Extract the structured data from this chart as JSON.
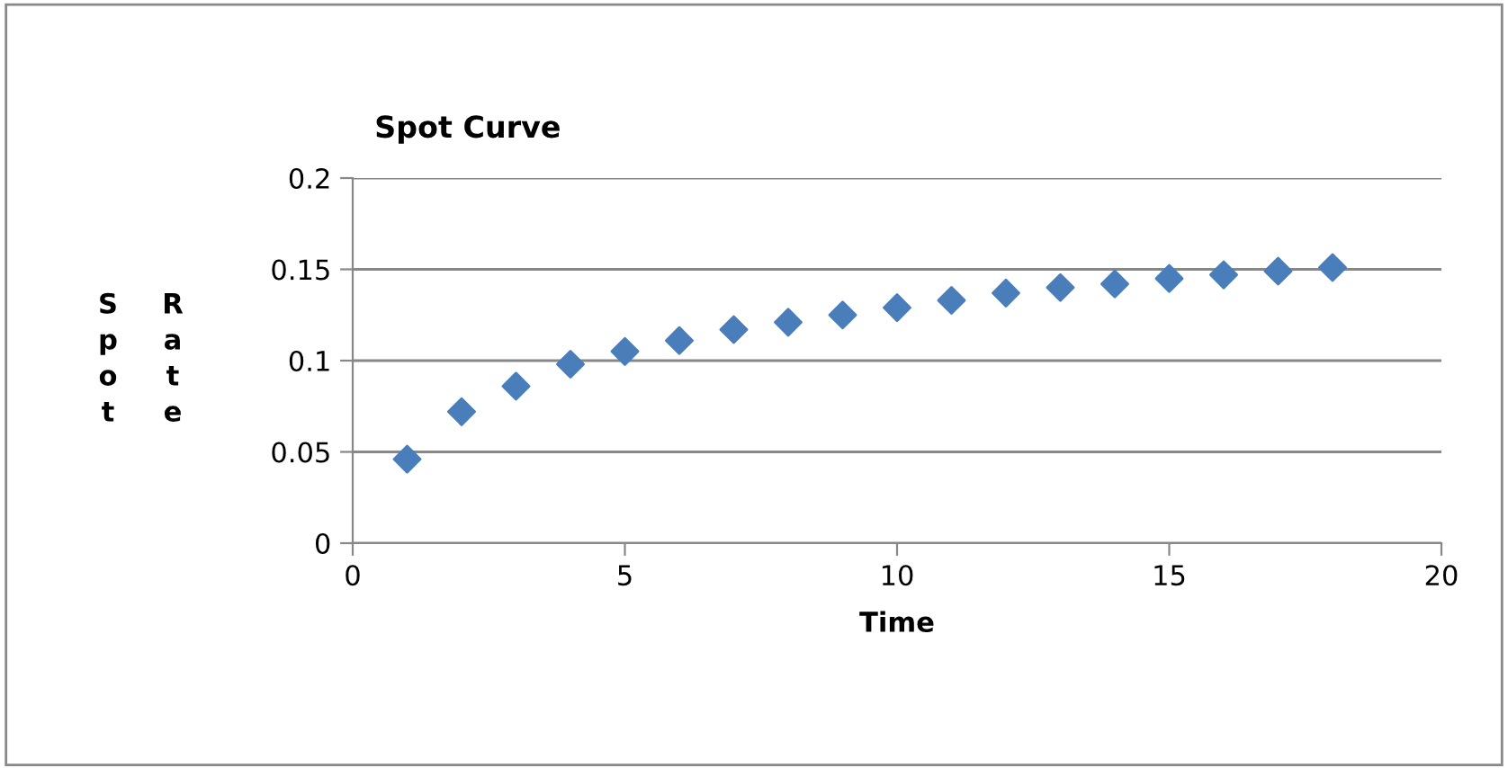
{
  "chart_data": {
    "type": "scatter",
    "title": "Spot Curve",
    "xlabel": "Time",
    "ylabel": "Spot Rate",
    "x": [
      1,
      2,
      3,
      4,
      5,
      6,
      7,
      8,
      9,
      10,
      11,
      12,
      13,
      14,
      15,
      16,
      17,
      18
    ],
    "series": [
      {
        "color": "#4a7ebb",
        "values": [
          0.046,
          0.072,
          0.086,
          0.098,
          0.105,
          0.111,
          0.117,
          0.121,
          0.125,
          0.129,
          0.133,
          0.137,
          0.14,
          0.142,
          0.145,
          0.147,
          0.149,
          0.151
        ]
      }
    ],
    "xlim": [
      0,
      20
    ],
    "xticks": [
      0,
      5,
      10,
      15,
      20
    ],
    "ylim": [
      0,
      0.2
    ],
    "yticks": [
      0,
      {
        "value": 0.05,
        "label": "0.05"
      },
      {
        "value": 0.1,
        "label": "0.1"
      },
      {
        "value": 0.15,
        "label": "0.15"
      },
      {
        "value": 0.2,
        "label": "0.2"
      }
    ],
    "grid": "y",
    "marker": "diamond"
  }
}
